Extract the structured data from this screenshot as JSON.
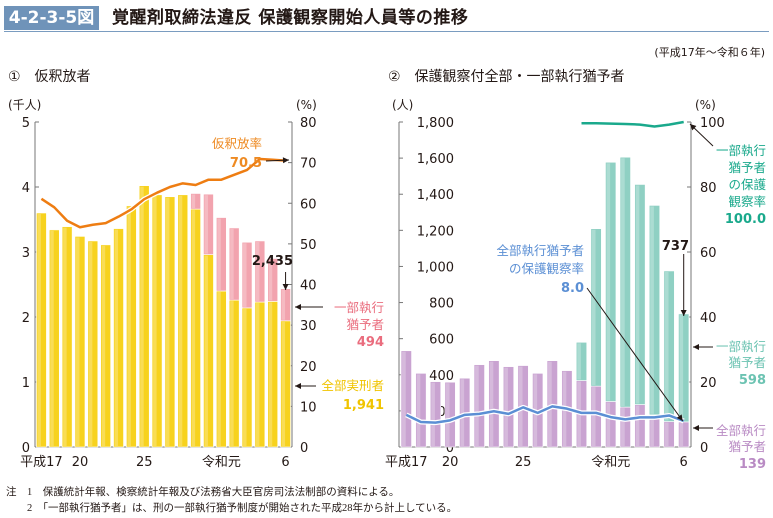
{
  "header": {
    "figure_number": "4-2-3-5図",
    "title": "覚醒剤取締法違反 保護観察開始人員等の推移",
    "period": "(平成17年～令和６年)"
  },
  "notes": [
    "注　1　保護統計年報、検察統計年報及び法務省大臣官房司法法制部の資料による。",
    "　　2　「一部執行猶予者」は、刑の一部執行猶予制度が開始された平成28年から計上している。"
  ],
  "chart_data": [
    {
      "type": "bar",
      "stacked": true,
      "title": "①　仮釈放者",
      "categories": [
        "平成17",
        "18",
        "19",
        "20",
        "21",
        "22",
        "23",
        "24",
        "25",
        "26",
        "27",
        "28",
        "29",
        "30",
        "令和元",
        "2",
        "3",
        "4",
        "5",
        "6"
      ],
      "x_tick_labels": [
        "平成17",
        "20",
        "25",
        "令和元",
        "6"
      ],
      "x_tick_indices": [
        0,
        3,
        8,
        14,
        19
      ],
      "ylabel_left": "(千人)",
      "ylabel_right": "(%)",
      "ylim_left": [
        0,
        5
      ],
      "yticks_left": [
        "0",
        "1",
        "2",
        "3",
        "4",
        "5"
      ],
      "ylim_right": [
        0,
        80
      ],
      "yticks_right": [
        "0",
        "10",
        "20",
        "30",
        "40",
        "50",
        "60",
        "70",
        "80"
      ],
      "series": [
        {
          "name": "全部実刑者",
          "color": "#f7d21e",
          "unit": "千人",
          "values": [
            3.6,
            3.34,
            3.39,
            3.24,
            3.17,
            3.11,
            3.36,
            3.71,
            4.02,
            3.88,
            3.85,
            3.88,
            3.66,
            2.96,
            2.4,
            2.26,
            2.14,
            2.23,
            2.24,
            1.941
          ]
        },
        {
          "name": "一部執行猶予者",
          "color": "#f2a3ae",
          "unit": "千人",
          "values": [
            0,
            0,
            0,
            0,
            0,
            0,
            0,
            0,
            0,
            0,
            0,
            0,
            0.24,
            0.93,
            1.13,
            1.11,
            1.01,
            0.94,
            0.66,
            0.494
          ]
        },
        {
          "name": "仮釈放率",
          "color": "#ee7d12",
          "type": "line",
          "axis": "right",
          "unit": "%",
          "values": [
            61.1,
            59.0,
            55.7,
            54.1,
            54.7,
            55.1,
            56.7,
            58.5,
            61.0,
            62.6,
            64.0,
            64.9,
            64.5,
            65.8,
            65.8,
            67.0,
            68.2,
            70.9,
            70.7,
            70.5
          ]
        }
      ],
      "annotations": {
        "total_last": "2,435",
        "rate_label": "仮釈放率",
        "rate_value": "70.5",
        "partial_label_1": "一部執行",
        "partial_label_2": "猶予者",
        "partial_value": "494",
        "full_label": "全部実刑者",
        "full_value": "1,941"
      }
    },
    {
      "type": "bar",
      "stacked": true,
      "title": "②　保護観察付全部・一部執行猶予者",
      "categories": [
        "平成17",
        "18",
        "19",
        "20",
        "21",
        "22",
        "23",
        "24",
        "25",
        "26",
        "27",
        "28",
        "29",
        "30",
        "令和元",
        "2",
        "3",
        "4",
        "5",
        "6"
      ],
      "x_tick_labels": [
        "平成17",
        "20",
        "25",
        "令和元",
        "6"
      ],
      "x_tick_indices": [
        0,
        3,
        8,
        14,
        19
      ],
      "ylabel_left": "(人)",
      "ylabel_right": "(%)",
      "ylim_left": [
        0,
        1800
      ],
      "yticks_left": [
        "0",
        "200",
        "400",
        "600",
        "800",
        "1,000",
        "1,200",
        "1,400",
        "1,600",
        "1,800"
      ],
      "ylim_right": [
        0,
        100
      ],
      "yticks_right": [
        "0",
        "20",
        "40",
        "60",
        "80",
        "100"
      ],
      "series": [
        {
          "name": "全部執行猶予者",
          "color": "#c9a3d1",
          "unit": "人",
          "values": [
            533,
            408,
            362,
            359,
            381,
            456,
            478,
            445,
            451,
            408,
            478,
            423,
            368,
            337,
            252,
            221,
            235,
            178,
            141,
            139
          ]
        },
        {
          "name": "一部執行猶予者",
          "color": "#8fd0c3",
          "unit": "人",
          "values": [
            0,
            0,
            0,
            0,
            0,
            0,
            0,
            0,
            0,
            0,
            0,
            0,
            212,
            872,
            1325,
            1384,
            1219,
            1160,
            834,
            598
          ]
        },
        {
          "name": "全部執行猶予者の保護観察率",
          "color": "#5b8fd4",
          "type": "line",
          "axis": "right",
          "unit": "%",
          "values": [
            9.9,
            7.7,
            7.5,
            8.2,
            9.9,
            10.2,
            11.0,
            10.2,
            12.2,
            10.5,
            12.5,
            11.8,
            10.5,
            10.5,
            9.2,
            8.5,
            9.1,
            9.1,
            9.7,
            8.0
          ]
        },
        {
          "name": "一部執行猶予者の保護観察率",
          "color": "#1aa98c",
          "type": "line",
          "axis": "right",
          "unit": "%",
          "start_index": 12,
          "values": [
            99.6,
            99.6,
            99.5,
            99.4,
            99.2,
            98.6,
            99.2,
            100.0
          ]
        }
      ],
      "annotations": {
        "total_last": "737",
        "full_rate_label_1": "全部執行猶予者",
        "full_rate_label_2": "の保護観察率",
        "full_rate_value": "8.0",
        "partial_rate_label_1": "一部執行",
        "partial_rate_label_2": "猶予者",
        "partial_rate_label_3": "の保護",
        "partial_rate_label_4": "観察率",
        "partial_rate_value": "100.0",
        "partial_label_1": "一部執行",
        "partial_label_2": "猶予者",
        "partial_value": "598",
        "full_label_1": "全部執行",
        "full_label_2": "猶予者",
        "full_value": "139"
      }
    }
  ]
}
